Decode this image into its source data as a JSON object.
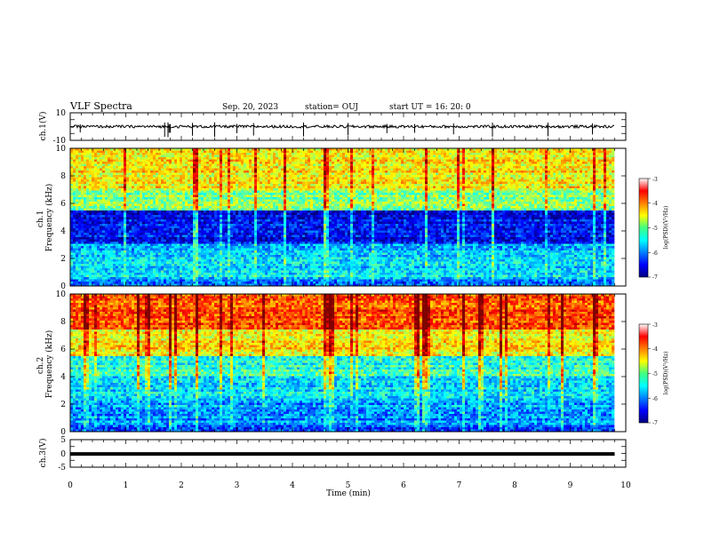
{
  "header": {
    "title": "VLF Spectra",
    "date": "Sep. 20, 2023",
    "station": "station= OUJ",
    "start": "start  UT =   16: 20: 0"
  },
  "chart_data": [
    {
      "type": "line",
      "name": "ch1-waveform",
      "ylabel": "ch.1(V)",
      "ylim": [
        -10,
        10
      ],
      "yticks": [
        "10",
        "-10"
      ],
      "xlim": [
        0,
        10
      ],
      "baseline": 0,
      "typical_amplitude": 1,
      "spike_times_min": [
        0.18,
        1.7,
        1.76,
        1.78,
        1.8,
        2.2,
        2.6,
        3.0,
        3.3,
        4.2,
        5.0,
        5.7,
        6.2,
        6.9,
        7.6,
        8.6,
        9.4
      ],
      "trace_end_min": 9.8,
      "color": "#000000"
    },
    {
      "type": "heatmap",
      "name": "ch1-spectrogram",
      "ylabel": "ch.1\nFrequency (kHz)",
      "ylim": [
        0,
        10
      ],
      "yticks": [
        "0",
        "2",
        "4",
        "6",
        "8",
        "10"
      ],
      "xlim": [
        0,
        10
      ],
      "data_end_min": 9.8,
      "z_label": "log(PSD)(V²/Hz)",
      "z_range": [
        -7,
        -3
      ],
      "z_ticks": [
        "-3",
        "-4",
        "-5",
        "-6",
        "-7"
      ],
      "bands": [
        {
          "f_lo": 0,
          "f_hi": 0.5,
          "log_psd": -6.2
        },
        {
          "f_lo": 0.5,
          "f_hi": 1.5,
          "log_psd": -5.6
        },
        {
          "f_lo": 1.5,
          "f_hi": 3.0,
          "log_psd": -5.7
        },
        {
          "f_lo": 3.0,
          "f_hi": 5.5,
          "log_psd": -6.5
        },
        {
          "f_lo": 5.5,
          "f_hi": 7.0,
          "log_psd": -5.0
        },
        {
          "f_lo": 7.0,
          "f_hi": 8.5,
          "log_psd": -4.5
        },
        {
          "f_lo": 8.5,
          "f_hi": 10,
          "log_psd": -4.4
        }
      ]
    },
    {
      "type": "heatmap",
      "name": "ch2-spectrogram",
      "ylabel": "ch.2\nFrequency (kHz)",
      "ylim": [
        0,
        10
      ],
      "yticks": [
        "0",
        "2",
        "4",
        "6",
        "8",
        "10"
      ],
      "xlim": [
        0,
        10
      ],
      "data_end_min": 9.8,
      "z_label": "log(PSD)(V²/Hz)",
      "z_range": [
        -7,
        -3
      ],
      "z_ticks": [
        "-3",
        "-4",
        "-5",
        "-6",
        "-7"
      ],
      "bands": [
        {
          "f_lo": 0,
          "f_hi": 0.5,
          "log_psd": -6.2
        },
        {
          "f_lo": 0.5,
          "f_hi": 2.5,
          "log_psd": -5.9
        },
        {
          "f_lo": 2.5,
          "f_hi": 4.0,
          "log_psd": -5.6
        },
        {
          "f_lo": 4.0,
          "f_hi": 5.5,
          "log_psd": -5.3
        },
        {
          "f_lo": 5.5,
          "f_hi": 7.5,
          "log_psd": -4.5
        },
        {
          "f_lo": 7.5,
          "f_hi": 10,
          "log_psd": -3.8
        }
      ]
    },
    {
      "type": "line",
      "name": "ch3-waveform",
      "ylabel": "ch.3(V)",
      "ylim": [
        -5,
        5
      ],
      "yticks": [
        "5",
        "0",
        "-5"
      ],
      "xlim": [
        0,
        10
      ],
      "xticks": [
        "0",
        "1",
        "2",
        "3",
        "4",
        "5",
        "6",
        "7",
        "8",
        "9",
        "10"
      ],
      "xlabel": "Time (min)",
      "baseline": -0.2,
      "trace_end_min": 9.8,
      "color": "#000000"
    }
  ]
}
